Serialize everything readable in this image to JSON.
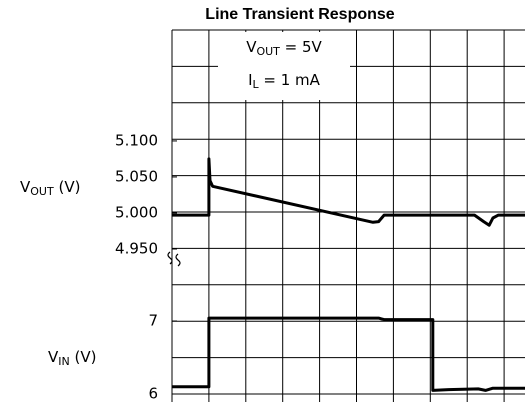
{
  "chart_data": [
    {
      "type": "line",
      "title": "Line Transient Response",
      "ylabel": {
        "text": "V",
        "sub": "OUT",
        "rest": " (V)"
      },
      "annotations": [
        {
          "text": "V",
          "sub": "OUT",
          "rest": " = 5V"
        },
        {
          "text": "I",
          "sub": "L",
          "rest": " = 1 mA"
        }
      ],
      "xlim": [
        0,
        9.57
      ],
      "ylim": [
        4.925,
        5.254
      ],
      "yticks": [
        {
          "value": 5.1,
          "label": "5.100"
        },
        {
          "value": 5.05,
          "label": "5.050"
        },
        {
          "value": 5.0,
          "label": "5.000"
        },
        {
          "value": 4.95,
          "label": "4.950"
        }
      ],
      "series": [
        {
          "color": "#000000",
          "x": [
            0,
            1.0,
            1.0,
            1.03,
            1.1,
            5.45,
            5.6,
            5.75,
            8.2,
            8.45,
            8.6,
            8.7,
            8.85,
            9.57
          ],
          "values": [
            4.997,
            4.997,
            5.075,
            5.045,
            5.037,
            4.987,
            4.988,
            4.997,
            4.997,
            4.988,
            4.983,
            4.993,
            4.997,
            4.997
          ]
        }
      ]
    },
    {
      "type": "line",
      "ylabel": {
        "text": "V",
        "sub": "IN",
        "rest": " (V)"
      },
      "xlim": [
        0,
        9.57
      ],
      "ylim": [
        5.9,
        7.85
      ],
      "yticks": [
        7,
        6
      ],
      "series": [
        {
          "color": "#000000",
          "x": [
            0,
            1.0,
            1.0,
            5.6,
            5.75,
            7.07,
            7.07,
            7.5,
            8.3,
            8.5,
            8.7,
            9.57
          ],
          "values": [
            6.1,
            6.1,
            7.04,
            7.04,
            7.02,
            7.02,
            6.05,
            6.06,
            6.07,
            6.05,
            6.08,
            6.08
          ]
        }
      ]
    }
  ]
}
